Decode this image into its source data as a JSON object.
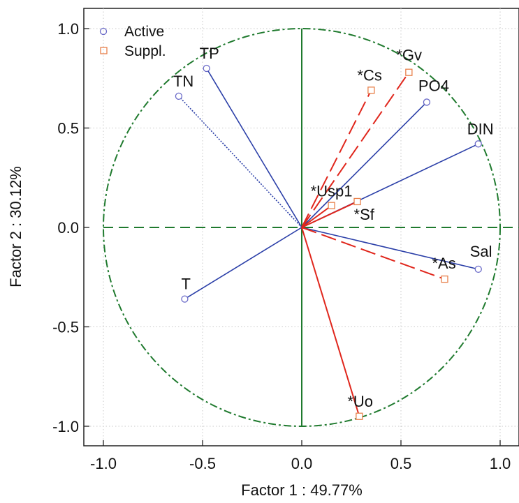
{
  "chart_data": {
    "type": "scatter",
    "subtype": "pca-correlation-circle",
    "xlabel": "Factor 1 : 49.77%",
    "ylabel": "Factor 2 : 30.12%",
    "xlim": [
      -1.1,
      1.1
    ],
    "ylim": [
      -1.1,
      1.1
    ],
    "x_ticks": [
      "-1.0",
      "-0.5",
      "0.0",
      "0.5",
      "1.0"
    ],
    "y_ticks": [
      "1.0",
      "0.5",
      "0.0",
      "-0.5",
      "-1.0"
    ],
    "grid": true,
    "legend_position": "top-left",
    "legend": [
      {
        "label": "Active",
        "marker": "circle",
        "color": "#6a6ac8"
      },
      {
        "label": "Suppl.",
        "marker": "square",
        "color": "#e8804a"
      }
    ],
    "colors": {
      "active_line": "#2b3fa8",
      "supplementary_line": "#e0261c",
      "circle": "#1f7a2e",
      "grid": "#c8c8c8"
    },
    "series": [
      {
        "name": "Active",
        "points": [
          {
            "label": "TP",
            "x": -0.48,
            "y": 0.8
          },
          {
            "label": "TN",
            "x": -0.62,
            "y": 0.66
          },
          {
            "label": "PO4",
            "x": 0.63,
            "y": 0.63
          },
          {
            "label": "DIN",
            "x": 0.89,
            "y": 0.42
          },
          {
            "label": "Sal",
            "x": 0.89,
            "y": -0.21
          },
          {
            "label": "T",
            "x": -0.59,
            "y": -0.36
          }
        ]
      },
      {
        "name": "Suppl.",
        "points": [
          {
            "label": "*Gv",
            "x": 0.54,
            "y": 0.78
          },
          {
            "label": "*Cs",
            "x": 0.35,
            "y": 0.69
          },
          {
            "label": "*Usp1",
            "x": 0.15,
            "y": 0.11
          },
          {
            "label": "*Sf",
            "x": 0.28,
            "y": 0.13
          },
          {
            "label": "*As",
            "x": 0.72,
            "y": -0.26
          },
          {
            "label": "*Uo",
            "x": 0.29,
            "y": -0.95
          }
        ]
      }
    ]
  }
}
